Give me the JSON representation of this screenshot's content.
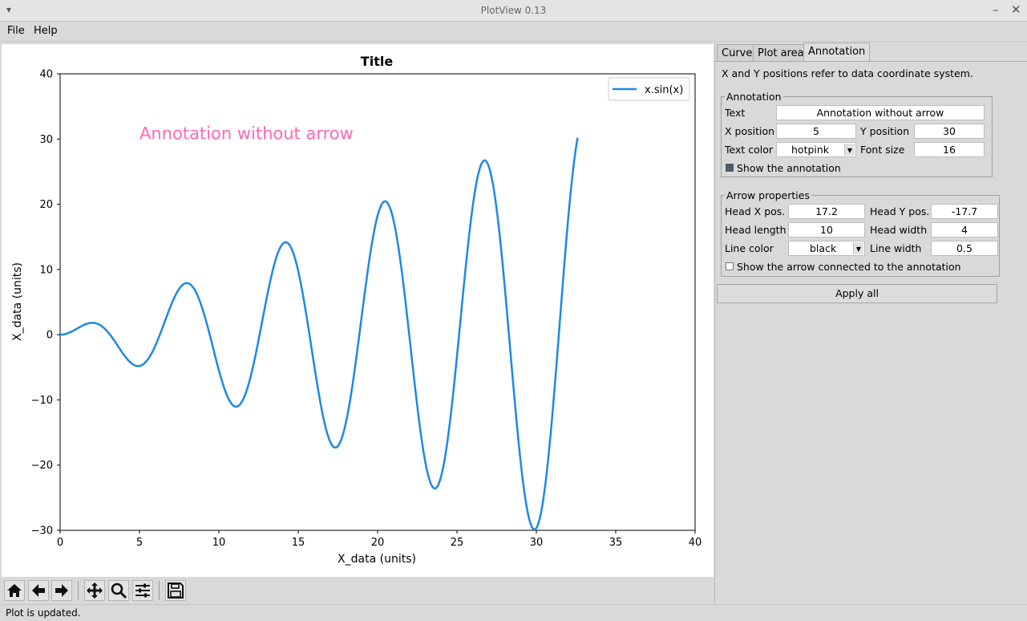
{
  "window": {
    "title": "PlotView 0.13"
  },
  "menu": {
    "file": "File",
    "help": "Help"
  },
  "chart_data": {
    "type": "line",
    "title": "Title",
    "xlabel": "X_data (units)",
    "ylabel": "X_data (units)",
    "xlim": [
      0,
      40
    ],
    "ylim": [
      -30,
      40
    ],
    "xticks": [
      "0",
      "5",
      "10",
      "15",
      "20",
      "25",
      "30",
      "35",
      "40"
    ],
    "yticks": [
      "−30",
      "−20",
      "−10",
      "0",
      "10",
      "20",
      "30",
      "40"
    ],
    "legend": "top-right",
    "grid": false,
    "series": [
      {
        "name": "x.sin(x)",
        "function": "x*sin(x)",
        "x_range": [
          0,
          32.6
        ],
        "color": "#1e88e5"
      }
    ],
    "annotation": {
      "text": "Annotation without arrow",
      "x": 5,
      "y": 30,
      "color": "#ff69b4"
    }
  },
  "toolbar": {
    "home": "home-icon",
    "back": "arrow-left-icon",
    "forward": "arrow-right-icon",
    "pan": "move-icon",
    "zoom": "magnifier-icon",
    "configure": "sliders-icon",
    "save": "save-icon"
  },
  "status": "Plot is updated.",
  "tabs": [
    "Curve",
    "Plot area",
    "Annotation"
  ],
  "panel": {
    "note": "X and Y positions refer to data coordinate system.",
    "annotation": {
      "title": "Annotation",
      "text_label": "Text",
      "text_value": "Annotation without arrow",
      "x_label": "X position",
      "x_value": "5",
      "y_label": "Y position",
      "y_value": "30",
      "color_label": "Text color",
      "color_value": "hotpink",
      "size_label": "Font size",
      "size_value": "16",
      "show_label": "Show the annotation"
    },
    "arrow": {
      "title": "Arrow properties",
      "hx_label": "Head X pos.",
      "hx_value": "17.2",
      "hy_label": "Head Y pos.",
      "hy_value": "-17.7",
      "hl_label": "Head length",
      "hl_value": "10",
      "hw_label": "Head width",
      "hw_value": "4",
      "lc_label": "Line color",
      "lc_value": "black",
      "lw_label": "Line width",
      "lw_value": "0.5",
      "show_label": "Show the arrow connected to the annotation"
    },
    "apply": "Apply all"
  }
}
